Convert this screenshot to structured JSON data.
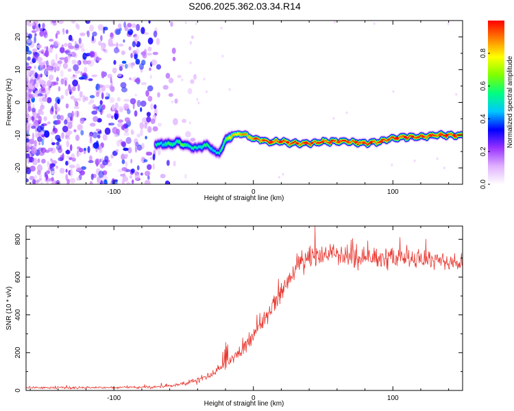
{
  "figure_title": "S206.2025.362.03.34.R14",
  "colors": {
    "snr_line": "#e8352e",
    "axes": "#000000",
    "ridge_purple": "#7a2cff",
    "noise_purple": "#8a3cf0"
  },
  "chart_data": [
    {
      "type": "heatmap",
      "title": "S206.2025.362.03.34.R14",
      "xlabel": "Height of straight line (km)",
      "ylabel": "Frequency (Hz)",
      "xlim": [
        -163,
        150
      ],
      "ylim": [
        -25,
        25
      ],
      "xticks": [
        -100,
        0,
        100
      ],
      "yticks": [
        20,
        10,
        0,
        -10,
        -20
      ],
      "colorbar": {
        "label": "Normalized spectral amplitude",
        "range": [
          0,
          1
        ],
        "ticks": [
          "0.0",
          "0.2",
          "0.4",
          "0.6",
          "0.8"
        ],
        "colormap": [
          "#ffffff",
          "#e0b0ff",
          "#9933ff",
          "#0000ff",
          "#00c8ff",
          "#00ff80",
          "#80ff00",
          "#ffff00",
          "#ff8000",
          "#ff0000"
        ]
      },
      "noise_region": {
        "x": [
          -163,
          -70
        ],
        "freq": [
          -25,
          25
        ],
        "amplitude": "low (0.1-0.3)"
      },
      "ridge": {
        "x": [
          -70,
          -65,
          -60,
          -55,
          -50,
          -45,
          -40,
          -35,
          -30,
          -25,
          -22,
          -18,
          -15,
          -10,
          -5,
          0,
          5,
          10,
          20,
          30,
          40,
          50,
          60,
          70,
          80,
          90,
          100,
          110,
          120,
          130,
          140,
          150
        ],
        "freq": [
          -13,
          -12.5,
          -13,
          -12,
          -13,
          -13.5,
          -14,
          -13,
          -14,
          -16,
          -13,
          -11,
          -10,
          -9.5,
          -10,
          -11,
          -11.5,
          -12,
          -12,
          -12.5,
          -12.5,
          -12,
          -12,
          -12,
          -12.5,
          -12,
          -11,
          -10.5,
          -10.5,
          -10,
          -10,
          -10
        ],
        "peak_amplitude": [
          0.5,
          0.5,
          0.55,
          0.55,
          0.6,
          0.5,
          0.5,
          0.55,
          0.5,
          0.45,
          0.6,
          0.7,
          0.8,
          0.85,
          0.85,
          0.9,
          0.9,
          0.95,
          0.95,
          0.95,
          0.95,
          0.95,
          0.95,
          0.95,
          0.95,
          0.95,
          0.95,
          0.95,
          0.95,
          0.95,
          0.95,
          0.95
        ]
      }
    },
    {
      "type": "line",
      "series": [
        {
          "name": "SNR",
          "x": [
            -163,
            -140,
            -120,
            -100,
            -80,
            -70,
            -60,
            -50,
            -40,
            -30,
            -25,
            -20,
            -15,
            -10,
            -5,
            0,
            5,
            10,
            15,
            20,
            25,
            30,
            35,
            40,
            45,
            50,
            60,
            70,
            80,
            90,
            100,
            110,
            120,
            130,
            140,
            150
          ],
          "values": [
            15,
            15,
            15,
            15,
            16,
            18,
            25,
            35,
            55,
            85,
            110,
            140,
            170,
            200,
            250,
            290,
            340,
            400,
            460,
            520,
            580,
            640,
            680,
            700,
            710,
            720,
            720,
            710,
            710,
            700,
            700,
            690,
            690,
            690,
            680,
            680
          ],
          "noise": [
            8,
            8,
            8,
            8,
            8,
            10,
            12,
            15,
            20,
            25,
            30,
            35,
            40,
            40,
            45,
            45,
            50,
            55,
            60,
            65,
            70,
            75,
            80,
            80,
            80,
            80,
            70,
            70,
            70,
            70,
            70,
            70,
            70,
            70,
            70,
            70
          ]
        }
      ],
      "xlabel": "Height of straight line (km)",
      "ylabel": "SNR (10 * v/v)",
      "xlim": [
        -163,
        150
      ],
      "ylim": [
        0,
        870
      ],
      "xticks": [
        -100,
        0,
        100
      ],
      "yticks": [
        0,
        200,
        400,
        600,
        800
      ]
    }
  ]
}
